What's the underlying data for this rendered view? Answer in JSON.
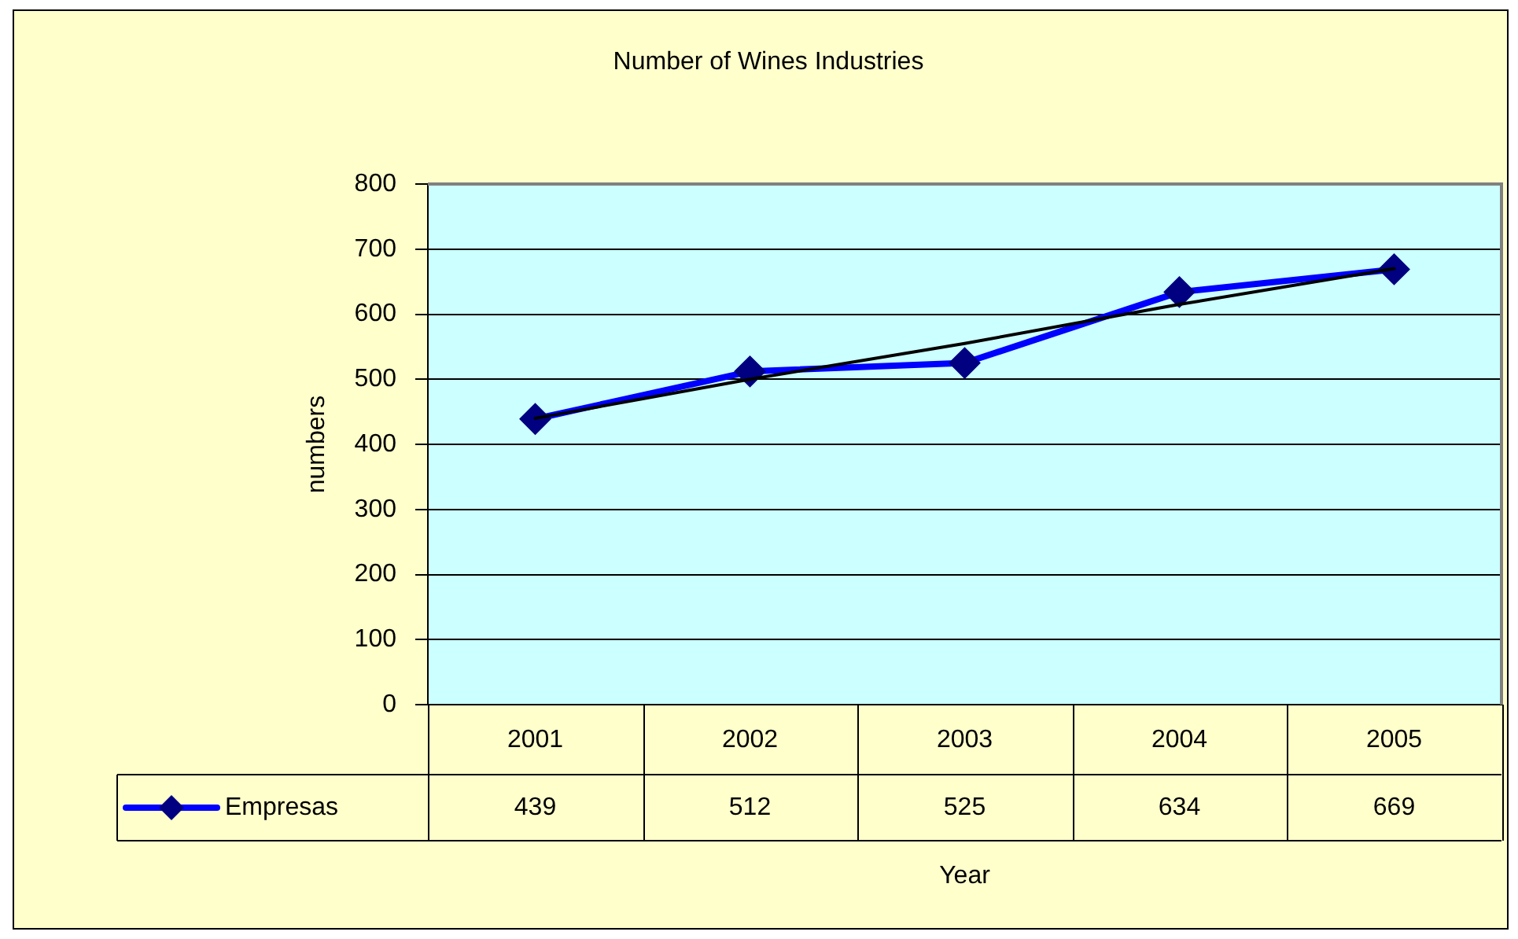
{
  "chart_data": {
    "type": "line",
    "title": "Number of Wines Industries",
    "xlabel": "Year",
    "ylabel": "numbers",
    "categories": [
      "2001",
      "2002",
      "2003",
      "2004",
      "2005"
    ],
    "series": [
      {
        "name": "Empresas",
        "color": "#0000ff",
        "values": [
          439,
          512,
          525,
          634,
          669
        ],
        "value_labels": [
          "439",
          "512",
          "525",
          "634",
          "669"
        ]
      },
      {
        "color": "#000000",
        "values": [
          440,
          500,
          555,
          615,
          670
        ],
        "marker": "none"
      }
    ],
    "ylim": [
      0,
      800
    ],
    "yticks": [
      0,
      100,
      200,
      300,
      400,
      500,
      600,
      700,
      800
    ],
    "grid": "y",
    "legend": "bottom",
    "marker": "diamond"
  }
}
